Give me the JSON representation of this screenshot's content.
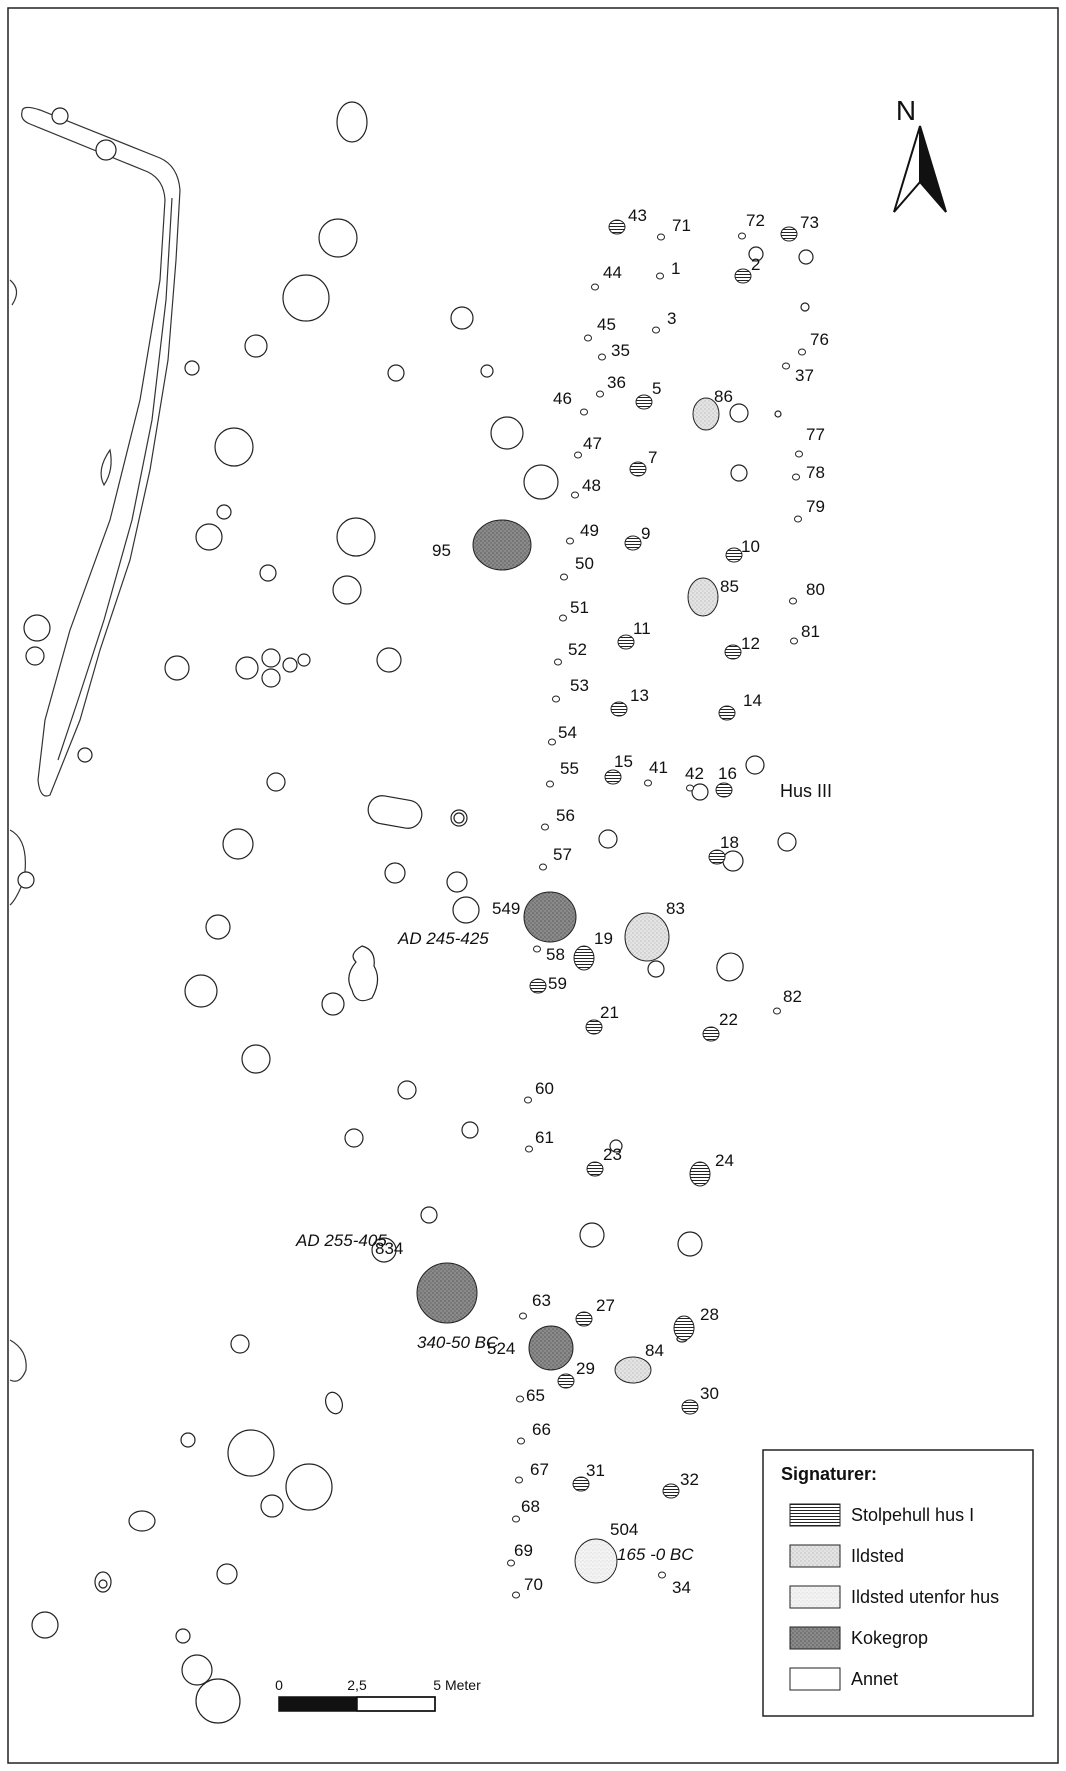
{
  "north": {
    "label": "N"
  },
  "features": {
    "posts": [
      {
        "id": "43",
        "kind": "post"
      },
      {
        "id": "71",
        "kind": "minor"
      },
      {
        "id": "72",
        "kind": "minor"
      },
      {
        "id": "73",
        "kind": "post"
      },
      {
        "id": "44",
        "kind": "minor"
      },
      {
        "id": "1",
        "kind": "minor"
      },
      {
        "id": "2",
        "kind": "post"
      },
      {
        "id": "45",
        "kind": "minor"
      },
      {
        "id": "3",
        "kind": "minor"
      },
      {
        "id": "76",
        "kind": "minor"
      },
      {
        "id": "35",
        "kind": "minor"
      },
      {
        "id": "37",
        "kind": "minor"
      },
      {
        "id": "46",
        "kind": "minor"
      },
      {
        "id": "36",
        "kind": "minor"
      },
      {
        "id": "5",
        "kind": "post"
      },
      {
        "id": "77",
        "kind": "minor"
      },
      {
        "id": "47",
        "kind": "minor"
      },
      {
        "id": "7",
        "kind": "post"
      },
      {
        "id": "78",
        "kind": "minor"
      },
      {
        "id": "48",
        "kind": "minor"
      },
      {
        "id": "79",
        "kind": "minor"
      },
      {
        "id": "49",
        "kind": "minor"
      },
      {
        "id": "9",
        "kind": "post"
      },
      {
        "id": "10",
        "kind": "post"
      },
      {
        "id": "50",
        "kind": "minor"
      },
      {
        "id": "80",
        "kind": "minor"
      },
      {
        "id": "51",
        "kind": "minor"
      },
      {
        "id": "11",
        "kind": "post"
      },
      {
        "id": "81",
        "kind": "minor"
      },
      {
        "id": "12",
        "kind": "post"
      },
      {
        "id": "52",
        "kind": "minor"
      },
      {
        "id": "53",
        "kind": "minor"
      },
      {
        "id": "13",
        "kind": "post"
      },
      {
        "id": "14",
        "kind": "post"
      },
      {
        "id": "54",
        "kind": "minor"
      },
      {
        "id": "55",
        "kind": "minor"
      },
      {
        "id": "15",
        "kind": "post"
      },
      {
        "id": "41",
        "kind": "minor"
      },
      {
        "id": "42",
        "kind": "minor"
      },
      {
        "id": "16",
        "kind": "post"
      },
      {
        "id": "56",
        "kind": "minor"
      },
      {
        "id": "57",
        "kind": "minor"
      },
      {
        "id": "18",
        "kind": "post"
      },
      {
        "id": "58",
        "kind": "minor"
      },
      {
        "id": "19",
        "kind": "post"
      },
      {
        "id": "59",
        "kind": "post"
      },
      {
        "id": "21",
        "kind": "post"
      },
      {
        "id": "22",
        "kind": "post"
      },
      {
        "id": "82",
        "kind": "minor"
      },
      {
        "id": "60",
        "kind": "minor"
      },
      {
        "id": "61",
        "kind": "minor"
      },
      {
        "id": "23",
        "kind": "post"
      },
      {
        "id": "24",
        "kind": "post"
      },
      {
        "id": "63",
        "kind": "minor"
      },
      {
        "id": "27",
        "kind": "post"
      },
      {
        "id": "28",
        "kind": "post"
      },
      {
        "id": "29",
        "kind": "post"
      },
      {
        "id": "30",
        "kind": "post"
      },
      {
        "id": "65",
        "kind": "minor"
      },
      {
        "id": "66",
        "kind": "minor"
      },
      {
        "id": "67",
        "kind": "minor"
      },
      {
        "id": "31",
        "kind": "post"
      },
      {
        "id": "32",
        "kind": "post"
      },
      {
        "id": "68",
        "kind": "minor"
      },
      {
        "id": "69",
        "kind": "minor"
      },
      {
        "id": "70",
        "kind": "minor"
      },
      {
        "id": "34",
        "kind": "minor"
      }
    ],
    "hearths": [
      {
        "id": "86",
        "type": "ildsted"
      },
      {
        "id": "85",
        "type": "ildsted"
      },
      {
        "id": "83",
        "type": "ildsted"
      },
      {
        "id": "84",
        "type": "ildsted"
      },
      {
        "id": "504",
        "type": "ildsted-utenfor"
      },
      {
        "id": "95",
        "type": "kokegrop"
      },
      {
        "id": "549",
        "type": "kokegrop"
      },
      {
        "id": "834",
        "type": "kokegrop"
      },
      {
        "id": "524",
        "type": "kokegrop"
      }
    ]
  },
  "dates": {
    "d549": "AD 245-425",
    "d834": "AD 255-405",
    "d524": "340-50 BC",
    "d504": "165 -0 BC"
  },
  "house_label": "Hus III",
  "scale_bar": {
    "t0": "0",
    "t1": "2,5",
    "t2": "5 Meter"
  },
  "legend": {
    "title": "Signaturer:",
    "items": [
      {
        "key": "stolpehull",
        "label": "Stolpehull hus I"
      },
      {
        "key": "ildsted",
        "label": "Ildsted"
      },
      {
        "key": "ildsted-utenfor",
        "label": "Ildsted utenfor hus"
      },
      {
        "key": "kokegrop",
        "label": "Kokegrop"
      },
      {
        "key": "annet",
        "label": "Annet"
      }
    ]
  }
}
